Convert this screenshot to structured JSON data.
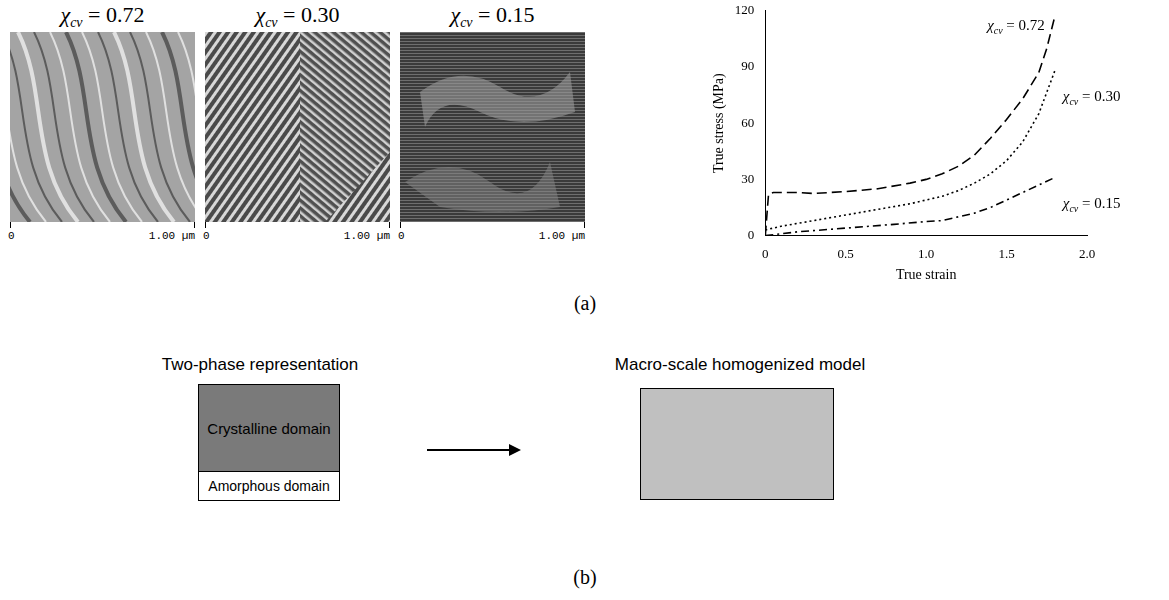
{
  "panel_labels": [
    "(a)",
    "(b)"
  ],
  "images": [
    {
      "label": {
        "symbol": "χ",
        "subscript": "cv",
        "text": " = 0.72"
      },
      "scale": [
        "0",
        "1.00 µm"
      ]
    },
    {
      "label": {
        "symbol": "χ",
        "subscript": "cv",
        "text": " = 0.30"
      },
      "scale": [
        "0",
        "1.00 µm"
      ]
    },
    {
      "label": {
        "symbol": "χ",
        "subscript": "cv",
        "text": " = 0.15"
      },
      "scale": [
        "0",
        "1.00 µm"
      ]
    }
  ],
  "chart_data": {
    "type": "line",
    "x_label": "True strain",
    "y_label": "True stress (MPa)",
    "xlim": [
      0,
      2
    ],
    "xticks": [
      0,
      0.5,
      1,
      1.5,
      2
    ],
    "ylim": [
      0,
      120
    ],
    "yticks": [
      0,
      30,
      60,
      90,
      120
    ],
    "grid": false,
    "series": [
      {
        "label": {
          "symbol": "χ",
          "subscript": "cv",
          "text": " = 0.72"
        },
        "color": "#000000",
        "line_style": "dashed",
        "x": [
          0,
          0.02,
          0.05,
          0.2,
          0.3,
          0.5,
          0.7,
          0.9,
          1.0,
          1.1,
          1.2,
          1.3,
          1.4,
          1.5,
          1.6,
          1.7,
          1.75,
          1.8
        ],
        "values": [
          0,
          22,
          23,
          23,
          22.5,
          23.5,
          25,
          28,
          30,
          33,
          37,
          43,
          52,
          62,
          73,
          87,
          100,
          117
        ]
      },
      {
        "label": {
          "symbol": "χ",
          "subscript": "cv",
          "text": " = 0.30"
        },
        "color": "#000000",
        "line_style": "dotted",
        "x": [
          0,
          0.1,
          0.3,
          0.5,
          0.7,
          0.9,
          1.0,
          1.1,
          1.2,
          1.3,
          1.4,
          1.5,
          1.6,
          1.7,
          1.8
        ],
        "values": [
          3,
          5,
          8,
          11,
          14,
          17,
          19,
          21,
          24,
          28,
          33,
          40,
          50,
          65,
          88
        ]
      },
      {
        "label": {
          "symbol": "χ",
          "subscript": "cv",
          "text": " = 0.15"
        },
        "color": "#000000",
        "line_style": "dashdot",
        "x": [
          0,
          0.2,
          0.5,
          0.8,
          1.0,
          1.1,
          1.2,
          1.3,
          1.4,
          1.5,
          1.6,
          1.7,
          1.8
        ],
        "values": [
          0,
          2,
          4,
          6,
          7.5,
          8,
          10,
          12,
          15,
          19,
          23,
          27,
          31
        ]
      }
    ]
  },
  "diagram": {
    "left_title": "Two-phase representation",
    "domains": [
      "Crystalline domain",
      "Amorphous domain"
    ],
    "right_title": "Macro-scale homogenized model"
  }
}
